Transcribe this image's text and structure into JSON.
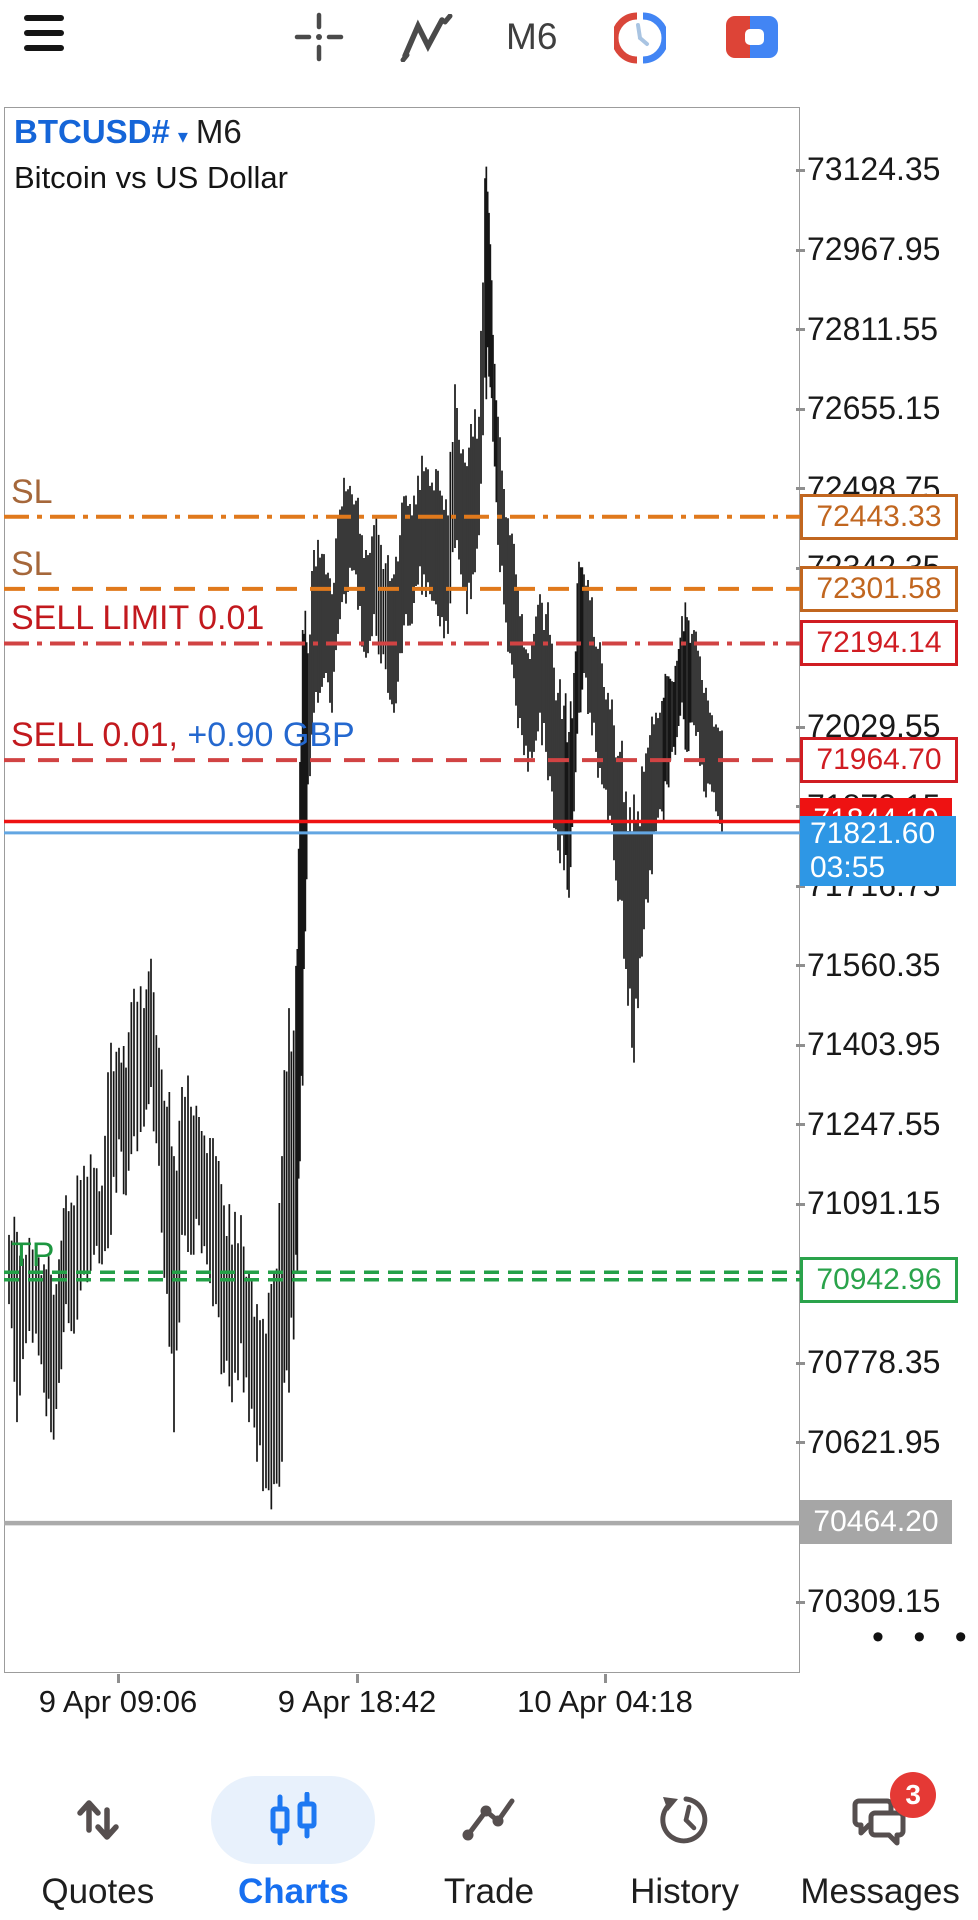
{
  "toolbar": {
    "timeframe_label": "M6"
  },
  "header": {
    "symbol": "BTCUSD#",
    "dropdown_glyph": "▾",
    "timeframe": "M6",
    "description": "Bitcoin vs US Dollar"
  },
  "scale_menu_dots": "• • •",
  "nav": {
    "items": [
      {
        "label": "Quotes",
        "icon": "quotes-arrows-icon",
        "active": false
      },
      {
        "label": "Charts",
        "icon": "candlestick-icon",
        "active": true
      },
      {
        "label": "Trade",
        "icon": "trade-line-icon",
        "active": false
      },
      {
        "label": "History",
        "icon": "history-clock-icon",
        "active": false
      },
      {
        "label": "Messages",
        "icon": "messages-bubble-icon",
        "active": false,
        "badge": "3"
      }
    ]
  },
  "chart_data": {
    "type": "ohlc-bars",
    "symbol": "BTCUSD#",
    "period": "M6",
    "title": "Bitcoin vs US Dollar",
    "ylim": [
      70200,
      73250
    ],
    "grid": false,
    "y_axis_ticks": [
      73124.35,
      72967.95,
      72811.55,
      72655.15,
      72498.75,
      72342.35,
      72029.55,
      71873.15,
      71716.75,
      71560.35,
      71403.95,
      71247.55,
      71091.15,
      70778.35,
      70621.95,
      70309.15
    ],
    "x_axis_ticks": [
      {
        "text": "9 Apr 09:06",
        "x": 118
      },
      {
        "text": "9 Apr 18:42",
        "x": 357
      },
      {
        "text": "10 Apr 04:18",
        "x": 605
      }
    ],
    "levels": [
      {
        "name": "stop-loss-1",
        "left_label": "SL",
        "price": 72443.33,
        "line": "dashdot",
        "width": 4,
        "color": "#e0791c",
        "label_color": "#a5673a",
        "badge": {
          "text": "72443.33",
          "type": "outline",
          "color": "#c1661f"
        }
      },
      {
        "name": "stop-loss-2",
        "left_label": "SL",
        "price": 72301.58,
        "line": "dashed",
        "width": 4,
        "color": "#e0791c",
        "label_color": "#a5673a",
        "badge": {
          "text": "72301.58",
          "type": "outline",
          "color": "#c1661f"
        }
      },
      {
        "name": "sell-limit-order",
        "left_label": "SELL LIMIT 0.01",
        "price": 72194.14,
        "line": "dashdot",
        "width": 4,
        "color": "#d14343",
        "label_color": "#c2191e",
        "badge": {
          "text": "72194.14",
          "type": "outline",
          "color": "#d01c22"
        }
      },
      {
        "name": "sell-position",
        "left_label": "SELL 0.01,",
        "left_label_profit": " +0.90 GBP",
        "profit_color": "#2468cf",
        "price": 71964.7,
        "line": "dashed",
        "width": 4,
        "color": "#d14343",
        "label_color": "#c2191e",
        "badge": {
          "text": "71964.70",
          "type": "outline",
          "color": "#d01c22"
        }
      },
      {
        "name": "take-profit",
        "left_label": "TP",
        "price": 70942.96,
        "line": "dashed-double",
        "width": 3.5,
        "color": "#23a047",
        "label_color": "#1d9640",
        "badge": {
          "text": "70942.96",
          "type": "outline",
          "color": "#2aa34b"
        }
      },
      {
        "name": "ask-price",
        "price": 71844.1,
        "line": "solid",
        "width": 3.5,
        "color": "#ee1212",
        "badge": {
          "text": "71844.10",
          "type": "fill",
          "fill": "#ee1212",
          "color": "#ffffff"
        }
      },
      {
        "name": "bid-price",
        "price": 71821.6,
        "line": "solid",
        "width": 3,
        "color": "#63a6e2",
        "badge": {
          "text": "71821.60",
          "subtext": "03:55",
          "type": "fill-bid",
          "fill": "#2e97e5",
          "color": "#ffffff"
        }
      },
      {
        "name": "session-open-line",
        "price": 70464.2,
        "line": "solid",
        "width": 4.5,
        "color": "#ababab",
        "badge": {
          "text": "70464.20",
          "type": "fill",
          "fill": "#a6a6a6",
          "color": "#ffffff"
        }
      }
    ],
    "current": {
      "bid": 71821.6,
      "ask": 71844.1,
      "time": "03:55"
    },
    "price_path": [
      [
        5,
        71031,
        70895
      ],
      [
        13,
        71037,
        70663
      ],
      [
        22,
        70992,
        70818
      ],
      [
        32,
        71012,
        70837
      ],
      [
        40,
        70973,
        70721
      ],
      [
        47,
        70953,
        70643
      ],
      [
        55,
        70983,
        70740
      ],
      [
        62,
        71109,
        70895
      ],
      [
        70,
        71089,
        70837
      ],
      [
        80,
        71167,
        70953
      ],
      [
        90,
        71163,
        70992
      ],
      [
        98,
        71128,
        70973
      ],
      [
        107,
        71409,
        71031
      ],
      [
        115,
        71399,
        71219
      ],
      [
        122,
        71360,
        71109
      ],
      [
        130,
        71515,
        71225
      ],
      [
        140,
        71477,
        71244
      ],
      [
        147,
        71574,
        71322
      ],
      [
        155,
        71399,
        71167
      ],
      [
        163,
        71283,
        70915
      ],
      [
        170,
        71186,
        70643
      ],
      [
        178,
        71322,
        71031
      ],
      [
        187,
        71283,
        70992
      ],
      [
        195,
        71263,
        71050
      ],
      [
        203,
        71192,
        70973
      ],
      [
        212,
        71186,
        70895
      ],
      [
        220,
        71089,
        70760
      ],
      [
        228,
        71012,
        70702
      ],
      [
        237,
        71070,
        70818
      ],
      [
        245,
        70959,
        70663
      ],
      [
        253,
        70895,
        70585
      ],
      [
        262,
        70837,
        70533
      ],
      [
        270,
        70959,
        70541
      ],
      [
        278,
        71186,
        70585
      ],
      [
        285,
        71477,
        70721
      ],
      [
        292,
        71560,
        70992
      ],
      [
        296,
        71961,
        71176
      ],
      [
        300,
        72213,
        71554
      ],
      [
        304,
        72175,
        71917
      ],
      [
        310,
        72378,
        72058
      ],
      [
        316,
        72363,
        72097
      ],
      [
        322,
        72330,
        72136
      ],
      [
        328,
        72291,
        72058
      ],
      [
        334,
        72446,
        72213
      ],
      [
        340,
        72520,
        72291
      ],
      [
        346,
        72504,
        72343
      ],
      [
        352,
        72475,
        72330
      ],
      [
        358,
        72407,
        72188
      ],
      [
        364,
        72368,
        72175
      ],
      [
        370,
        72427,
        72252
      ],
      [
        377,
        72388,
        72155
      ],
      [
        384,
        72368,
        72097
      ],
      [
        390,
        72330,
        72058
      ],
      [
        396,
        72407,
        72175
      ],
      [
        402,
        72485,
        72252
      ],
      [
        408,
        72446,
        72233
      ],
      [
        414,
        72524,
        72310
      ],
      [
        420,
        72533,
        72330
      ],
      [
        426,
        72504,
        72291
      ],
      [
        432,
        72537,
        72271
      ],
      [
        438,
        72485,
        72246
      ],
      [
        444,
        72446,
        72213
      ],
      [
        451,
        72704,
        72382
      ],
      [
        457,
        72568,
        72330
      ],
      [
        463,
        72543,
        72252
      ],
      [
        469,
        72601,
        72330
      ],
      [
        475,
        72640,
        72407
      ],
      [
        481,
        73109,
        72717
      ],
      [
        485,
        73041,
        72719
      ],
      [
        489,
        72801,
        72591
      ],
      [
        494,
        72640,
        72388
      ],
      [
        500,
        72498,
        72271
      ],
      [
        506,
        72407,
        72175
      ],
      [
        512,
        72330,
        72072
      ],
      [
        518,
        72252,
        72014
      ],
      [
        524,
        72175,
        71942
      ],
      [
        530,
        72213,
        71981
      ],
      [
        536,
        72291,
        72058
      ],
      [
        542,
        72252,
        71981
      ],
      [
        548,
        72194,
        71903
      ],
      [
        554,
        72097,
        71787
      ],
      [
        560,
        72072,
        71748
      ],
      [
        565,
        72020,
        71694
      ],
      [
        570,
        72136,
        71864
      ],
      [
        575,
        72355,
        72058
      ],
      [
        580,
        72330,
        72136
      ],
      [
        586,
        72279,
        72058
      ],
      [
        592,
        72188,
        71981
      ],
      [
        598,
        72155,
        71917
      ],
      [
        604,
        72097,
        71845
      ],
      [
        610,
        72033,
        71768
      ],
      [
        616,
        71981,
        71690
      ],
      [
        622,
        71903,
        71554
      ],
      [
        628,
        71825,
        71399
      ],
      [
        634,
        71864,
        71477
      ],
      [
        640,
        71942,
        71632
      ],
      [
        646,
        72014,
        71748
      ],
      [
        652,
        72058,
        71825
      ],
      [
        658,
        72081,
        71864
      ],
      [
        663,
        72130,
        71917
      ],
      [
        668,
        72120,
        71981
      ],
      [
        673,
        72160,
        72010
      ],
      [
        678,
        72248,
        72078
      ],
      [
        683,
        72246,
        71981
      ],
      [
        688,
        72213,
        72039
      ],
      [
        694,
        72180,
        72020
      ],
      [
        700,
        72097,
        71903
      ],
      [
        706,
        72058,
        71917
      ],
      [
        712,
        72035,
        71864
      ],
      [
        718,
        72023,
        71821
      ]
    ]
  }
}
